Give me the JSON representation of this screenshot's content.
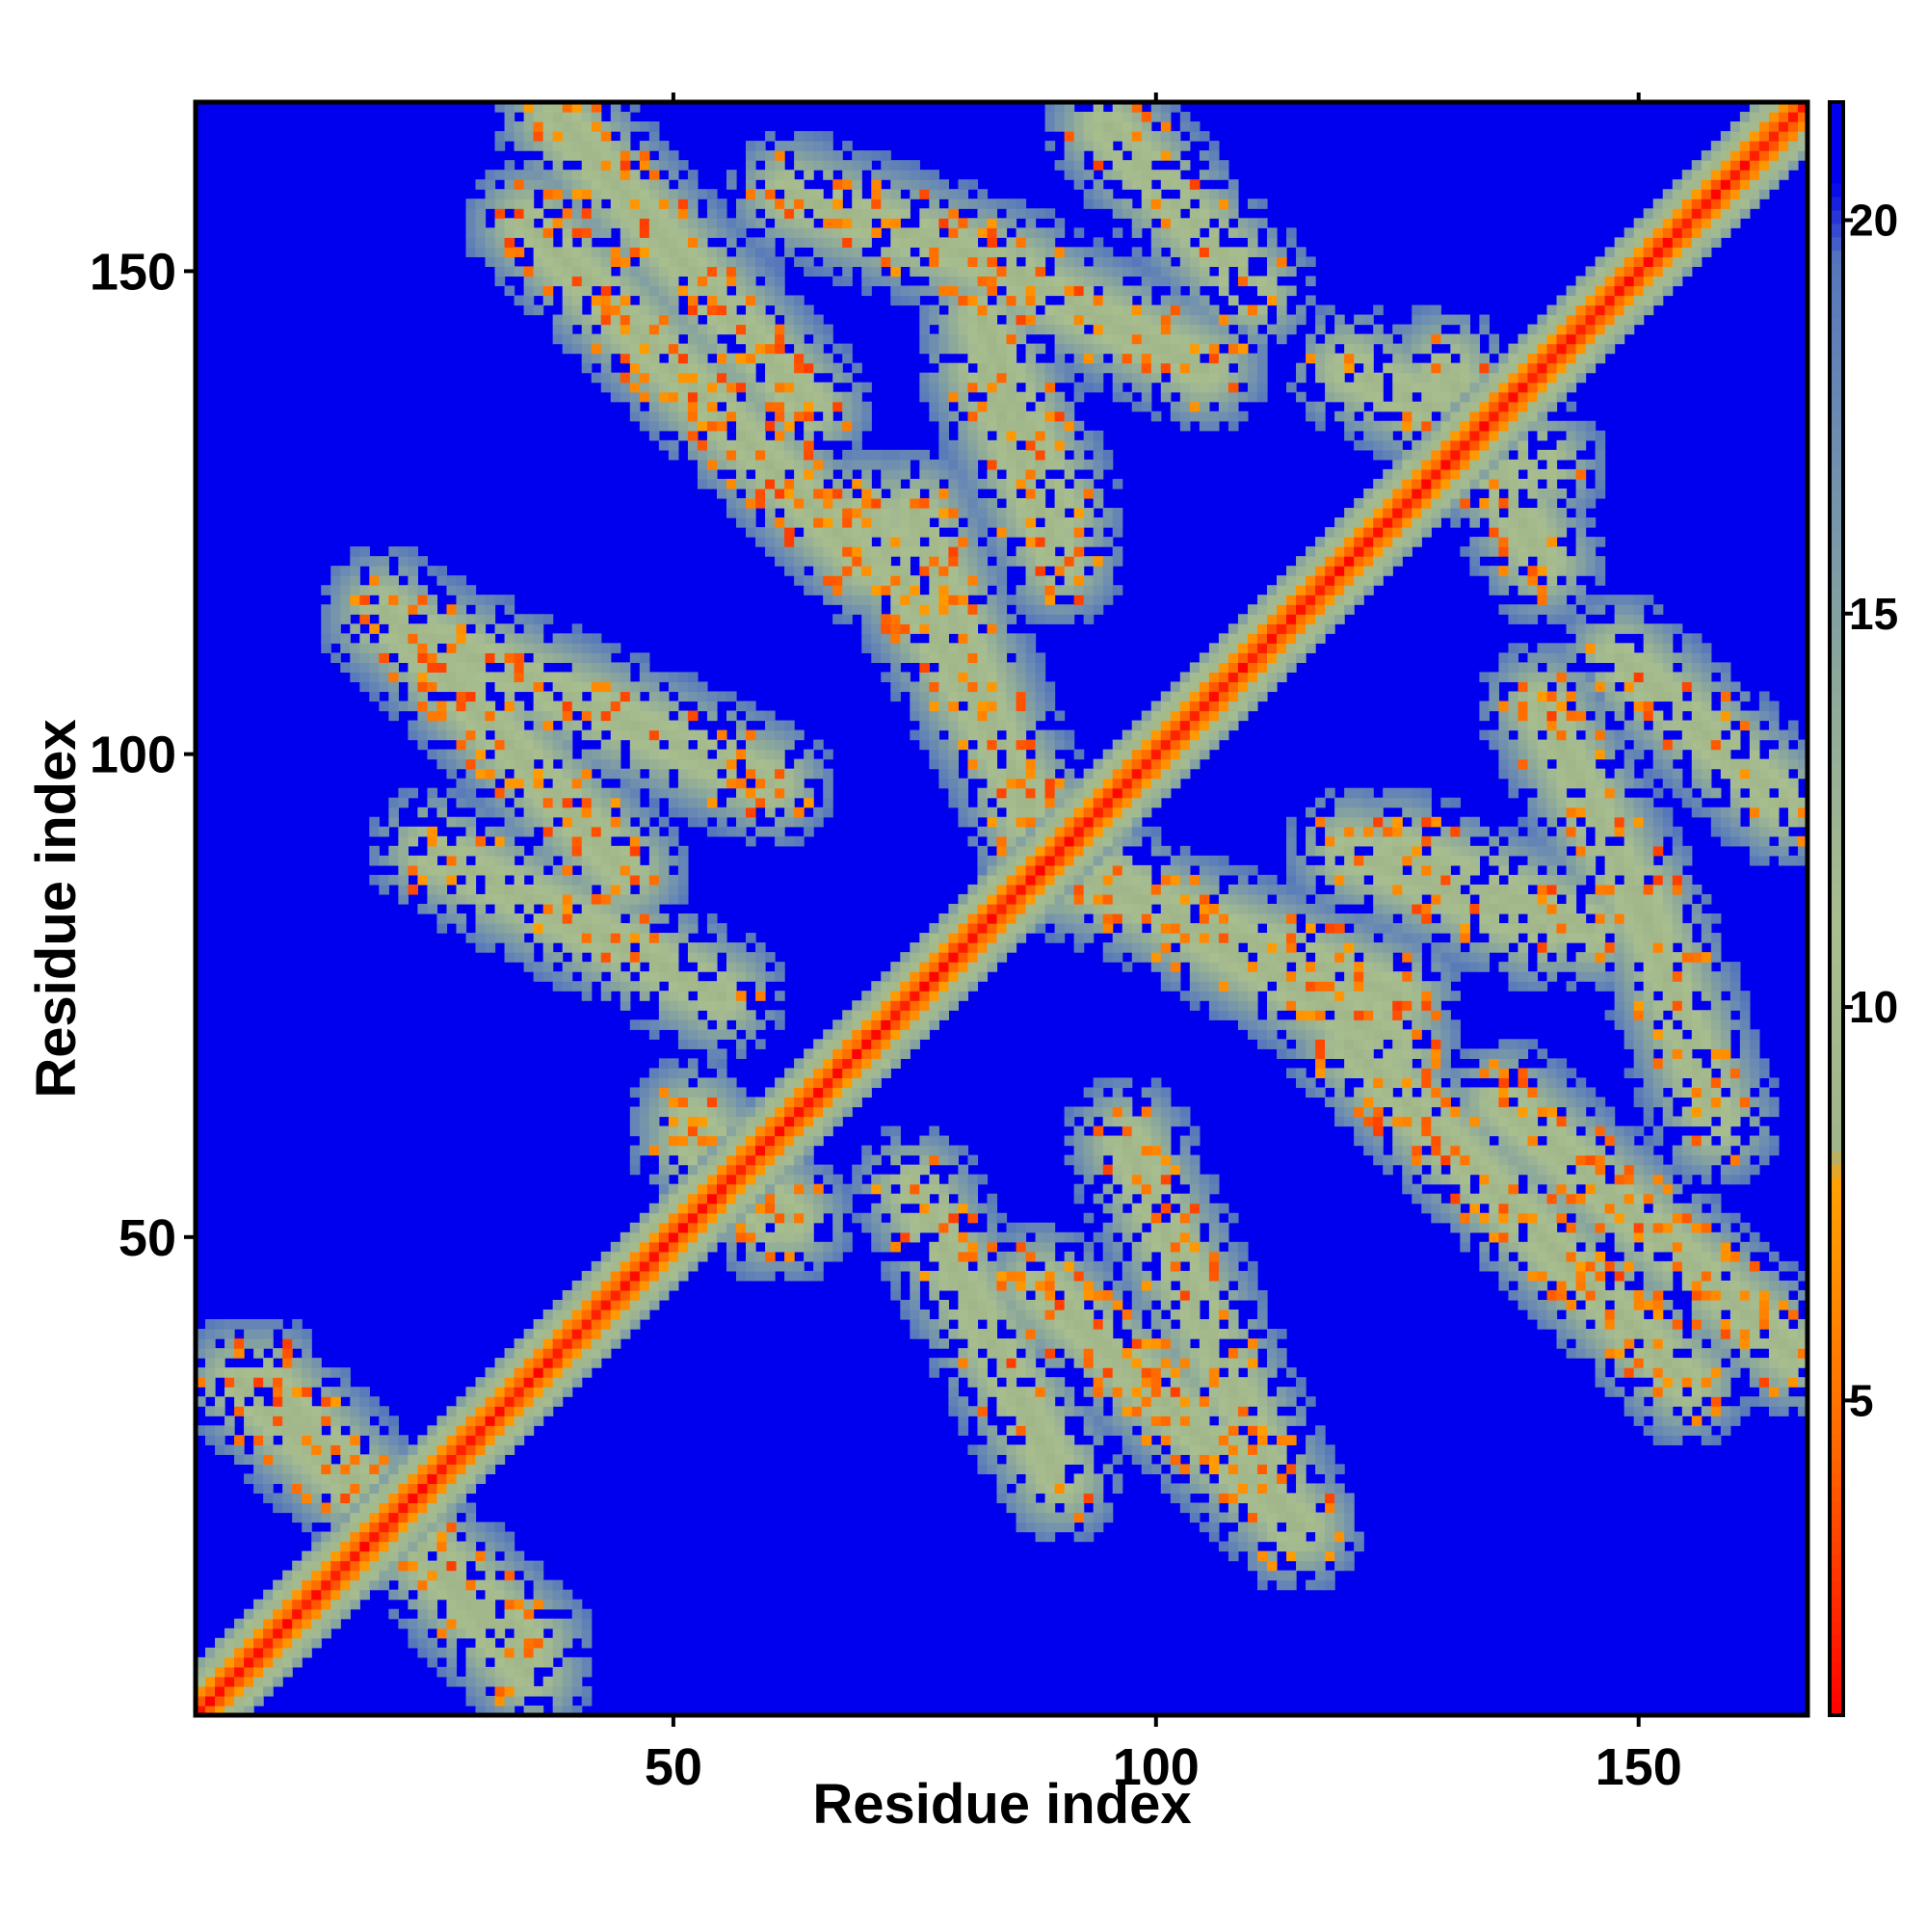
{
  "chart_data": {
    "type": "heatmap",
    "title": "",
    "xlabel": "Residue index",
    "ylabel": "Residue index",
    "n_residues": 167,
    "xlim": [
      1,
      167
    ],
    "ylim": [
      1,
      167
    ],
    "x_ticks": [
      50,
      100,
      150
    ],
    "y_ticks": [
      50,
      100,
      150
    ],
    "colorbar": {
      "ticks": [
        5,
        10,
        15,
        20
      ],
      "range": [
        1,
        21.5
      ],
      "stops": [
        {
          "value": 1,
          "color": "#ff0000"
        },
        {
          "value": 4.5,
          "color": "#ff6a00"
        },
        {
          "value": 7.8,
          "color": "#ffa200"
        },
        {
          "value": 8.2,
          "color": "#9fb58a"
        },
        {
          "value": 11,
          "color": "#a9be8e"
        },
        {
          "value": 14,
          "color": "#8ea99a"
        },
        {
          "value": 17,
          "color": "#6f8fb0"
        },
        {
          "value": 19.5,
          "color": "#5577bb"
        },
        {
          "value": 20.5,
          "color": "#0000ee"
        },
        {
          "value": 21.5,
          "color": "#0000ee"
        }
      ]
    },
    "background_color": "#0000ee",
    "diagonal_band": {
      "half_width": 5
    },
    "contact_bands": [
      {
        "from": [
          38,
          166
        ],
        "to": [
          64,
          136
        ],
        "intensity": "high"
      },
      {
        "from": [
          62,
          158
        ],
        "to": [
          86,
          150
        ],
        "intensity": "medium"
      },
      {
        "from": [
          95,
          165
        ],
        "to": [
          110,
          148
        ],
        "intensity": "low"
      },
      {
        "from": [
          82,
          140
        ],
        "to": [
          90,
          120
        ],
        "intensity": "medium"
      },
      {
        "from": [
          70,
          125
        ],
        "to": [
          87,
          95
        ],
        "intensity": "high"
      },
      {
        "from": [
          20,
          114
        ],
        "to": [
          60,
          97
        ],
        "intensity": "medium"
      },
      {
        "from": [
          90,
          88
        ],
        "to": [
          125,
          75
        ],
        "intensity": "high"
      },
      {
        "from": [
          125,
          90
        ],
        "to": [
          145,
          82
        ],
        "intensity": "medium"
      },
      {
        "from": [
          140,
          105
        ],
        "to": [
          152,
          80
        ],
        "intensity": "high"
      },
      {
        "from": [
          120,
          70
        ],
        "to": [
          155,
          35
        ],
        "intensity": "high"
      },
      {
        "from": [
          88,
          45
        ],
        "to": [
          115,
          20
        ],
        "intensity": "high"
      },
      {
        "from": [
          5,
          35
        ],
        "to": [
          35,
          8
        ],
        "intensity": "medium"
      },
      {
        "from": [
          52,
          62
        ],
        "to": [
          60,
          52
        ],
        "intensity": "high"
      },
      {
        "from": [
          25,
          90
        ],
        "to": [
          55,
          75
        ],
        "intensity": "low"
      },
      {
        "from": [
          130,
          140
        ],
        "to": [
          140,
          120
        ],
        "intensity": "low"
      }
    ]
  }
}
